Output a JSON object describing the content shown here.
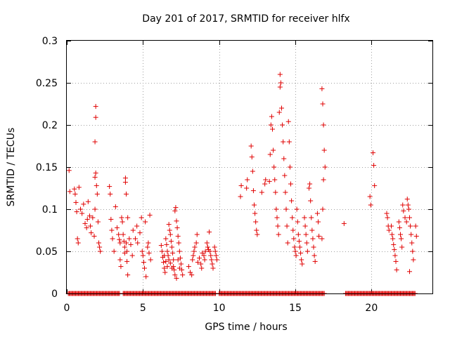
{
  "chart_data": {
    "type": "scatter",
    "title": "Day 201 of 2017, SRMTID for receiver hlfx",
    "xlabel": "GPS time / hours",
    "ylabel": "SRMTID / TECUs",
    "xlim": [
      0,
      24
    ],
    "ylim": [
      0,
      0.3
    ],
    "xticks": [
      0,
      5,
      10,
      15,
      20
    ],
    "yticks": [
      0,
      0.05,
      0.1,
      0.15,
      0.2,
      0.25,
      0.3
    ],
    "xtick_labels": [
      "0",
      "5",
      "10",
      "15",
      "20"
    ],
    "ytick_labels": [
      "0",
      "0.05",
      "0.1",
      "0.15",
      "0.2",
      "0.25",
      "0.3"
    ],
    "grid": true,
    "marker": "+",
    "series_color": "#e00000",
    "zero_baseline_ranges": [
      [
        0.1,
        3.5
      ],
      [
        3.7,
        9.8
      ],
      [
        10.0,
        16.9
      ],
      [
        18.3,
        22.9
      ]
    ],
    "points": [
      [
        0.15,
        0.146
      ],
      [
        0.2,
        0.121
      ],
      [
        0.5,
        0.124
      ],
      [
        0.55,
        0.118
      ],
      [
        0.6,
        0.108
      ],
      [
        0.65,
        0.097
      ],
      [
        0.7,
        0.065
      ],
      [
        0.75,
        0.06
      ],
      [
        0.8,
        0.126
      ],
      [
        0.9,
        0.1
      ],
      [
        1.0,
        0.095
      ],
      [
        1.1,
        0.106
      ],
      [
        1.2,
        0.083
      ],
      [
        1.3,
        0.078
      ],
      [
        1.35,
        0.088
      ],
      [
        1.4,
        0.109
      ],
      [
        1.5,
        0.092
      ],
      [
        1.55,
        0.08
      ],
      [
        1.6,
        0.072
      ],
      [
        1.7,
        0.09
      ],
      [
        1.8,
        0.068
      ],
      [
        1.85,
        0.1
      ],
      [
        1.9,
        0.222
      ],
      [
        1.9,
        0.209
      ],
      [
        1.85,
        0.18
      ],
      [
        1.9,
        0.143
      ],
      [
        1.85,
        0.138
      ],
      [
        1.95,
        0.128
      ],
      [
        2.0,
        0.118
      ],
      [
        2.05,
        0.085
      ],
      [
        2.1,
        0.06
      ],
      [
        2.15,
        0.055
      ],
      [
        2.2,
        0.05
      ],
      [
        2.8,
        0.127
      ],
      [
        2.85,
        0.118
      ],
      [
        2.9,
        0.088
      ],
      [
        2.95,
        0.075
      ],
      [
        3.0,
        0.065
      ],
      [
        3.1,
        0.05
      ],
      [
        3.2,
        0.103
      ],
      [
        3.3,
        0.078
      ],
      [
        3.4,
        0.07
      ],
      [
        3.45,
        0.064
      ],
      [
        3.5,
        0.06
      ],
      [
        3.5,
        0.04
      ],
      [
        3.55,
        0.032
      ],
      [
        3.6,
        0.09
      ],
      [
        3.65,
        0.085
      ],
      [
        3.7,
        0.07
      ],
      [
        3.75,
        0.062
      ],
      [
        3.8,
        0.055
      ],
      [
        3.8,
        0.048
      ],
      [
        3.85,
        0.137
      ],
      [
        3.85,
        0.132
      ],
      [
        3.9,
        0.118
      ],
      [
        3.9,
        0.06
      ],
      [
        3.95,
        0.05
      ],
      [
        3.95,
        0.038
      ],
      [
        4.0,
        0.09
      ],
      [
        4.0,
        0.022
      ],
      [
        4.1,
        0.065
      ],
      [
        4.2,
        0.058
      ],
      [
        4.3,
        0.045
      ],
      [
        4.35,
        0.075
      ],
      [
        4.5,
        0.065
      ],
      [
        4.6,
        0.08
      ],
      [
        4.65,
        0.06
      ],
      [
        4.8,
        0.072
      ],
      [
        4.9,
        0.09
      ],
      [
        4.95,
        0.05
      ],
      [
        5.0,
        0.045
      ],
      [
        5.05,
        0.037
      ],
      [
        5.1,
        0.03
      ],
      [
        5.15,
        0.085
      ],
      [
        5.2,
        0.02
      ],
      [
        5.3,
        0.055
      ],
      [
        5.35,
        0.06
      ],
      [
        5.4,
        0.048
      ],
      [
        5.45,
        0.093
      ],
      [
        5.5,
        0.04
      ],
      [
        6.2,
        0.057
      ],
      [
        6.25,
        0.05
      ],
      [
        6.3,
        0.043
      ],
      [
        6.35,
        0.037
      ],
      [
        6.4,
        0.03
      ],
      [
        6.45,
        0.025
      ],
      [
        6.5,
        0.065
      ],
      [
        6.55,
        0.058
      ],
      [
        6.6,
        0.05
      ],
      [
        6.65,
        0.045
      ],
      [
        6.7,
        0.082
      ],
      [
        6.75,
        0.075
      ],
      [
        6.8,
        0.07
      ],
      [
        6.85,
        0.062
      ],
      [
        6.9,
        0.055
      ],
      [
        6.95,
        0.048
      ],
      [
        7.0,
        0.04
      ],
      [
        7.0,
        0.032
      ],
      [
        7.05,
        0.028
      ],
      [
        7.1,
        0.098
      ],
      [
        7.15,
        0.102
      ],
      [
        7.2,
        0.086
      ],
      [
        7.25,
        0.078
      ],
      [
        7.3,
        0.068
      ],
      [
        7.35,
        0.06
      ],
      [
        7.4,
        0.05
      ],
      [
        7.45,
        0.042
      ],
      [
        7.5,
        0.035
      ],
      [
        7.55,
        0.028
      ],
      [
        7.6,
        0.022
      ],
      [
        7.2,
        0.018
      ],
      [
        7.1,
        0.022
      ],
      [
        6.9,
        0.03
      ],
      [
        6.8,
        0.036
      ],
      [
        6.7,
        0.04
      ],
      [
        6.6,
        0.032
      ],
      [
        6.5,
        0.038
      ],
      [
        6.4,
        0.045
      ],
      [
        7.3,
        0.04
      ],
      [
        7.4,
        0.03
      ],
      [
        8.0,
        0.032
      ],
      [
        8.1,
        0.025
      ],
      [
        8.2,
        0.022
      ],
      [
        8.25,
        0.04
      ],
      [
        8.3,
        0.045
      ],
      [
        8.35,
        0.05
      ],
      [
        8.4,
        0.055
      ],
      [
        8.5,
        0.06
      ],
      [
        8.55,
        0.07
      ],
      [
        8.6,
        0.037
      ],
      [
        8.7,
        0.042
      ],
      [
        8.8,
        0.035
      ],
      [
        8.85,
        0.03
      ],
      [
        8.9,
        0.048
      ],
      [
        9.0,
        0.045
      ],
      [
        9.05,
        0.04
      ],
      [
        9.1,
        0.05
      ],
      [
        9.2,
        0.06
      ],
      [
        9.25,
        0.055
      ],
      [
        9.3,
        0.052
      ],
      [
        9.35,
        0.073
      ],
      [
        9.4,
        0.05
      ],
      [
        9.45,
        0.045
      ],
      [
        9.5,
        0.04
      ],
      [
        9.55,
        0.035
      ],
      [
        9.6,
        0.03
      ],
      [
        9.7,
        0.055
      ],
      [
        9.75,
        0.05
      ],
      [
        9.8,
        0.045
      ],
      [
        9.85,
        0.04
      ],
      [
        11.4,
        0.115
      ],
      [
        11.45,
        0.128
      ],
      [
        11.8,
        0.125
      ],
      [
        11.85,
        0.135
      ],
      [
        12.1,
        0.175
      ],
      [
        12.15,
        0.162
      ],
      [
        12.2,
        0.145
      ],
      [
        12.25,
        0.122
      ],
      [
        12.3,
        0.105
      ],
      [
        12.35,
        0.095
      ],
      [
        12.4,
        0.085
      ],
      [
        12.45,
        0.075
      ],
      [
        12.5,
        0.07
      ],
      [
        12.8,
        0.12
      ],
      [
        13.0,
        0.13
      ],
      [
        13.05,
        0.135
      ],
      [
        13.3,
        0.133
      ],
      [
        13.35,
        0.165
      ],
      [
        13.4,
        0.2
      ],
      [
        13.45,
        0.21
      ],
      [
        13.5,
        0.195
      ],
      [
        13.55,
        0.17
      ],
      [
        13.6,
        0.15
      ],
      [
        13.65,
        0.135
      ],
      [
        13.7,
        0.12
      ],
      [
        13.75,
        0.1
      ],
      [
        13.8,
        0.09
      ],
      [
        13.85,
        0.08
      ],
      [
        13.9,
        0.07
      ],
      [
        13.95,
        0.215
      ],
      [
        14.0,
        0.26
      ],
      [
        14.0,
        0.245
      ],
      [
        14.05,
        0.25
      ],
      [
        14.1,
        0.22
      ],
      [
        14.15,
        0.2
      ],
      [
        14.2,
        0.18
      ],
      [
        14.25,
        0.16
      ],
      [
        14.3,
        0.14
      ],
      [
        14.35,
        0.12
      ],
      [
        14.4,
        0.1
      ],
      [
        14.45,
        0.08
      ],
      [
        14.5,
        0.06
      ],
      [
        14.55,
        0.204
      ],
      [
        14.6,
        0.18
      ],
      [
        14.65,
        0.15
      ],
      [
        14.7,
        0.13
      ],
      [
        14.75,
        0.11
      ],
      [
        14.8,
        0.09
      ],
      [
        14.85,
        0.075
      ],
      [
        14.9,
        0.065
      ],
      [
        14.95,
        0.055
      ],
      [
        15.0,
        0.05
      ],
      [
        15.05,
        0.045
      ],
      [
        15.1,
        0.1
      ],
      [
        15.15,
        0.085
      ],
      [
        15.2,
        0.07
      ],
      [
        15.25,
        0.062
      ],
      [
        15.3,
        0.055
      ],
      [
        15.35,
        0.048
      ],
      [
        15.4,
        0.04
      ],
      [
        15.45,
        0.035
      ],
      [
        15.6,
        0.09
      ],
      [
        15.65,
        0.08
      ],
      [
        15.7,
        0.07
      ],
      [
        15.75,
        0.06
      ],
      [
        15.8,
        0.05
      ],
      [
        15.9,
        0.125
      ],
      [
        15.95,
        0.13
      ],
      [
        16.0,
        0.11
      ],
      [
        16.05,
        0.09
      ],
      [
        16.1,
        0.075
      ],
      [
        16.15,
        0.065
      ],
      [
        16.2,
        0.055
      ],
      [
        16.25,
        0.045
      ],
      [
        16.3,
        0.038
      ],
      [
        16.45,
        0.095
      ],
      [
        16.5,
        0.085
      ],
      [
        16.55,
        0.068
      ],
      [
        16.75,
        0.243
      ],
      [
        16.8,
        0.225
      ],
      [
        16.85,
        0.2
      ],
      [
        16.9,
        0.17
      ],
      [
        16.95,
        0.15
      ],
      [
        16.85,
        0.135
      ],
      [
        16.8,
        0.1
      ],
      [
        16.75,
        0.065
      ],
      [
        18.2,
        0.083
      ],
      [
        19.9,
        0.115
      ],
      [
        19.95,
        0.105
      ],
      [
        20.1,
        0.167
      ],
      [
        20.15,
        0.152
      ],
      [
        20.2,
        0.128
      ],
      [
        21.0,
        0.095
      ],
      [
        21.05,
        0.09
      ],
      [
        21.1,
        0.08
      ],
      [
        21.15,
        0.075
      ],
      [
        21.3,
        0.08
      ],
      [
        21.35,
        0.07
      ],
      [
        21.4,
        0.065
      ],
      [
        21.45,
        0.058
      ],
      [
        21.5,
        0.052
      ],
      [
        21.55,
        0.045
      ],
      [
        21.6,
        0.038
      ],
      [
        21.65,
        0.028
      ],
      [
        21.8,
        0.085
      ],
      [
        21.85,
        0.078
      ],
      [
        21.9,
        0.07
      ],
      [
        21.95,
        0.065
      ],
      [
        22.0,
        0.055
      ],
      [
        22.05,
        0.105
      ],
      [
        22.1,
        0.098
      ],
      [
        22.2,
        0.09
      ],
      [
        22.3,
        0.085
      ],
      [
        22.35,
        0.112
      ],
      [
        22.4,
        0.105
      ],
      [
        22.45,
        0.1
      ],
      [
        22.5,
        0.09
      ],
      [
        22.55,
        0.08
      ],
      [
        22.6,
        0.07
      ],
      [
        22.65,
        0.06
      ],
      [
        22.7,
        0.05
      ],
      [
        22.75,
        0.04
      ],
      [
        22.5,
        0.026
      ],
      [
        22.9,
        0.08
      ],
      [
        22.95,
        0.068
      ]
    ]
  }
}
